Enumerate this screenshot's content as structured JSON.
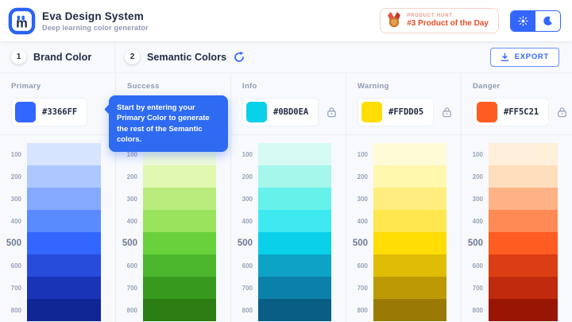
{
  "header": {
    "app_title": "Eva Design System",
    "app_subtitle": "Deep learning color generator",
    "product_hunt": {
      "eyebrow": "PRODUCT HUNT",
      "label": "#3 Product of the Day"
    }
  },
  "sections": {
    "brand": {
      "step": "1",
      "title": "Brand Color"
    },
    "semantic": {
      "step": "2",
      "title": "Semantic Colors"
    },
    "export_label": "EXPORT"
  },
  "tooltip": {
    "text": "Start by entering your Primary Color to generate the rest of the Semantic colors."
  },
  "theme_toggle": {
    "active": "light",
    "icons": [
      "sun-icon",
      "moon-icon"
    ]
  },
  "accent_color": "#3366FF",
  "scale_labels": [
    "100",
    "200",
    "300",
    "400",
    "500",
    "600",
    "700",
    "800"
  ],
  "columns": [
    {
      "id": "primary",
      "label": "Primary",
      "hex": "#3366FF",
      "chip": "#3366FF",
      "lock": false,
      "scale": [
        "#D6E4FF",
        "#ADC8FF",
        "#84A9FF",
        "#598BFF",
        "#3366FF",
        "#274BDB",
        "#1A34B8",
        "#102694"
      ]
    },
    {
      "id": "success",
      "label": "Success",
      "hex": "",
      "chip": "",
      "lock": false,
      "scale": [
        "#F0FBD7",
        "#E0F8B0",
        "#B9EB7D",
        "#9AE35C",
        "#69D13C",
        "#4CB72C",
        "#379A1E",
        "#2B7D14"
      ]
    },
    {
      "id": "info",
      "label": "Info",
      "hex": "#0BD0EA",
      "chip": "#0BD0EA",
      "lock": true,
      "scale": [
        "#D5FBF4",
        "#A5F6EB",
        "#66F1EA",
        "#3EE9F0",
        "#0BD0EA",
        "#0CA3C6",
        "#0B81A9",
        "#085E84"
      ]
    },
    {
      "id": "warning",
      "label": "Warning",
      "hex": "#FFDD05",
      "chip": "#FFDD05",
      "lock": true,
      "scale": [
        "#FFFBD6",
        "#FFF8AD",
        "#FFEE7E",
        "#FFE74F",
        "#FFDD05",
        "#DFBD04",
        "#BD9A05",
        "#9A7A04"
      ]
    },
    {
      "id": "danger",
      "label": "Danger",
      "hex": "#FF5C21",
      "chip": "#FF5C21",
      "lock": true,
      "scale": [
        "#FFEFDB",
        "#FFDEBC",
        "#FFB285",
        "#FF8A55",
        "#FF5C21",
        "#DB3E12",
        "#BF2B0C",
        "#9A1604"
      ]
    }
  ]
}
